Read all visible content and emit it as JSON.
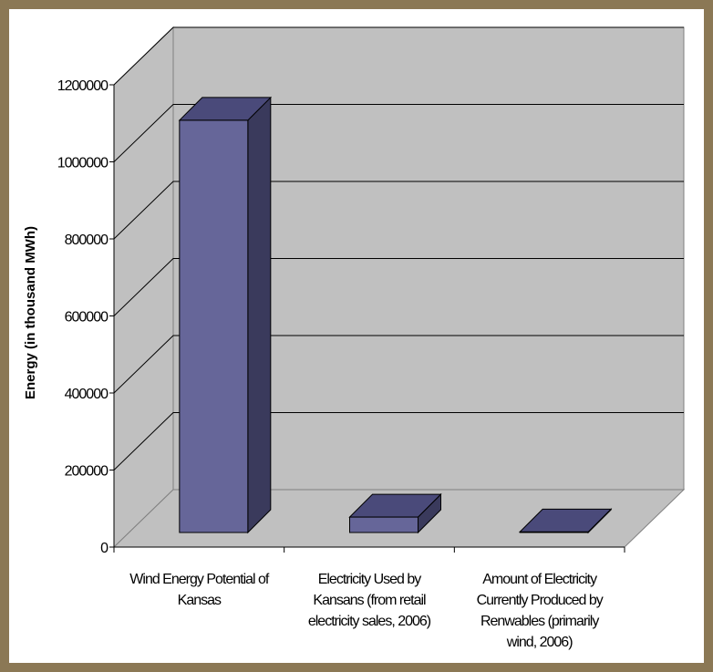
{
  "chart_data": {
    "type": "bar",
    "title": "",
    "xlabel": "",
    "ylabel": "Energy (in thousand MWh)",
    "ylim": [
      0,
      1200000
    ],
    "yticks": [
      "0",
      "200000",
      "400000",
      "600000",
      "800000",
      "1000000",
      "1200000"
    ],
    "categories": [
      [
        "Wind Energy Potential of",
        "Kansas"
      ],
      [
        "Electricity Used by",
        "Kansans (from retail",
        "electricity sales, 2006)"
      ],
      [
        "Amount of Electricity",
        "Currently Produced by",
        "Renwables (primarily",
        "wind, 2006)"
      ]
    ],
    "values": [
      1070000,
      40000,
      1500
    ],
    "grid": true,
    "style": "3d-column",
    "colors": {
      "bar_front": "#666699",
      "bar_top": "#4a4a7a",
      "bar_side": "#3a3a5c",
      "wall": "#c0c0c0",
      "floor": "#c0c0c0",
      "gridline": "#000000",
      "border": "#8b7855"
    }
  }
}
